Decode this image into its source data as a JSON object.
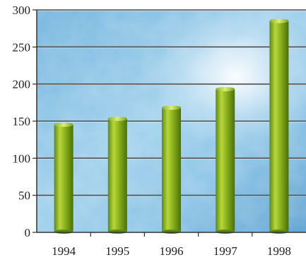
{
  "chart_data": {
    "type": "bar",
    "title": "",
    "xlabel": "",
    "ylabel": "",
    "categories": [
      "1994",
      "1995",
      "1996",
      "1997",
      "1998"
    ],
    "values": [
      147,
      155,
      170,
      195,
      287
    ],
    "ylim": [
      0,
      300
    ],
    "yticks": [
      0,
      50,
      100,
      150,
      200,
      250,
      300
    ],
    "grid": true,
    "legend": "none",
    "colors": {
      "bar_light": "#c9e04a",
      "bar_mid": "#8db31f",
      "bar_dark": "#4f7a0c",
      "background_light": "#d6ecf7",
      "background_dark": "#5aa3d3",
      "gridline": "#4a4a4a"
    }
  }
}
